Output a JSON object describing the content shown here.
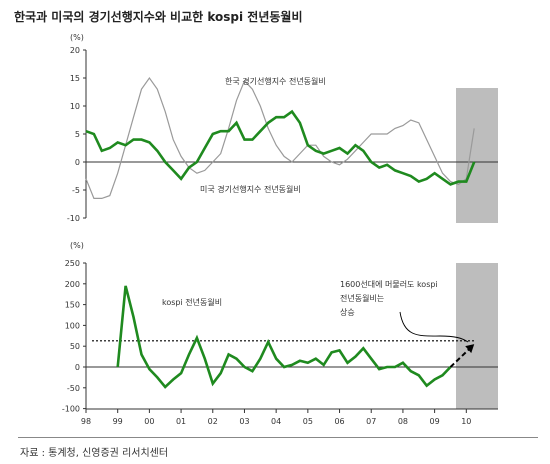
{
  "title": "한국과 미국의 경기선행지수와 비교한 kospi 전년동월비",
  "source": "자료 : 통계청, 신영증권 리서치센터",
  "colors": {
    "green": "#1f8a1f",
    "gray": "#9a9a9a",
    "shade": "#bdbdbd",
    "black": "#000000"
  },
  "chart_data": [
    {
      "type": "line",
      "unit_label": "(%)",
      "ylim": [
        -10,
        20
      ],
      "yticks": [
        "20",
        "15",
        "10",
        "5",
        "0",
        "-5",
        "-10"
      ],
      "x_start": "1998-01",
      "x_step_months": 3,
      "series": [
        {
          "name": "한국 경기선행지수 전년동월비",
          "values": [
            -3,
            -6.5,
            -6.5,
            -6,
            -2,
            3,
            8,
            13,
            15,
            13,
            9,
            4,
            1,
            -1,
            -2,
            -1.5,
            0,
            1.5,
            6,
            11,
            14.5,
            13,
            10,
            6,
            3,
            1,
            0,
            1.5,
            3,
            3,
            1,
            0,
            -0.5,
            0.5,
            2,
            3.5,
            5,
            5,
            5,
            6,
            6.5,
            7.5,
            7,
            4,
            1,
            -2,
            -3.5,
            -4,
            -3,
            6
          ]
        },
        {
          "name": "미국 경기선행지수 전년동월비",
          "values": [
            5.5,
            5,
            2,
            2.5,
            3.5,
            3,
            4,
            4,
            3.5,
            2,
            0,
            -1.5,
            -3,
            -1,
            0,
            2.5,
            5,
            5.5,
            5.5,
            7,
            4,
            4,
            5.5,
            7,
            8,
            8,
            9,
            7,
            3,
            2,
            1.5,
            2,
            2.5,
            1.5,
            3,
            2,
            0,
            -1,
            -0.5,
            -1.5,
            -2,
            -2.5,
            -3.5,
            -3,
            -2,
            -3,
            -4,
            -3.5,
            -3.5,
            0
          ]
        }
      ],
      "annotations": [
        "한국 경기선행지수 전년동월비",
        "미국 경기선행지수 전년동월비"
      ]
    },
    {
      "type": "line",
      "unit_label": "(%)",
      "ylim": [
        -100,
        250
      ],
      "yticks": [
        "250",
        "200",
        "150",
        "100",
        "50",
        "0",
        "-50",
        "-100"
      ],
      "x_ticks": [
        "98",
        "99",
        "00",
        "01",
        "02",
        "03",
        "04",
        "05",
        "06",
        "07",
        "08",
        "09",
        "10"
      ],
      "x_start": "1998-01",
      "x_step_months": 3,
      "series": [
        {
          "name": "kospi 전년동월비",
          "values": [
            null,
            null,
            null,
            null,
            0,
            195,
            120,
            30,
            -5,
            -25,
            -48,
            -30,
            -15,
            30,
            70,
            20,
            -40,
            -15,
            30,
            20,
            0,
            -10,
            20,
            60,
            20,
            0,
            5,
            15,
            10,
            20,
            5,
            35,
            40,
            10,
            25,
            45,
            20,
            -5,
            0,
            0,
            10,
            -10,
            -20,
            -45,
            -30,
            -20,
            0
          ]
        }
      ],
      "reference_line": 63,
      "projection": {
        "from_quarter": 46,
        "from_value": 0,
        "to_quarter": 49,
        "to_value": 55
      },
      "shaded_region": [
        "2009-Q1",
        "2009-Q4"
      ],
      "annotations": [
        "kospi 전년동월비",
        "1600선대에 머물러도 kospi",
        "전년동월비는",
        "상승"
      ]
    }
  ]
}
